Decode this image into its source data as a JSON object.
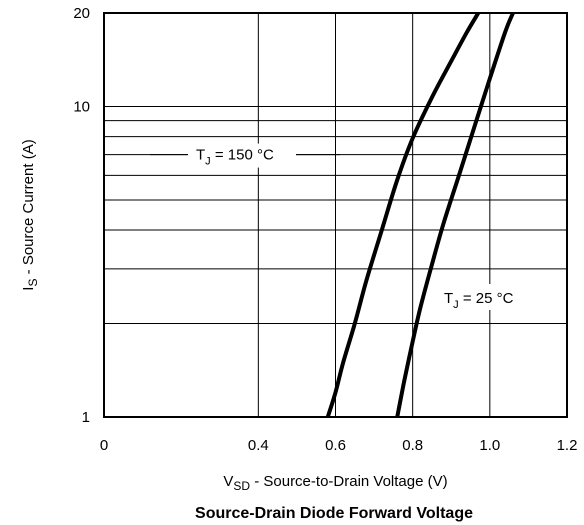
{
  "chart_data": {
    "type": "line",
    "title": "Source-Drain Diode Forward Voltage",
    "xlabel": {
      "main": "V",
      "sub": "SD",
      "rest": " - Source-to-Drain Voltage (V)"
    },
    "ylabel": {
      "main": "I",
      "sub": "S",
      "rest": " - Source Current (A)"
    },
    "xlim": [
      0,
      1.2
    ],
    "ylim": [
      1,
      20
    ],
    "yscale": "log",
    "grid": true,
    "xticks": [
      {
        "value": 0,
        "label": "0"
      },
      {
        "value": 0.4,
        "label": "0.4"
      },
      {
        "value": 0.6,
        "label": "0.6"
      },
      {
        "value": 0.8,
        "label": "0.8"
      },
      {
        "value": 1.0,
        "label": "1.0"
      },
      {
        "value": 1.2,
        "label": "1.2"
      }
    ],
    "yticks": [
      {
        "value": 1,
        "label": "1"
      },
      {
        "value": 10,
        "label": "10"
      },
      {
        "value": 20,
        "label": "20"
      }
    ],
    "ygrid_minor": [
      2,
      3,
      4,
      5,
      6,
      7,
      8,
      9
    ],
    "xgrid": [
      0.4,
      0.6,
      0.8,
      1.0
    ],
    "series": [
      {
        "name": "T_J = 150 °C",
        "annotation": {
          "main": "T",
          "sub": "J",
          "rest": " = 150 °C"
        },
        "x": [
          0.58,
          0.6,
          0.62,
          0.65,
          0.68,
          0.72,
          0.76,
          0.8,
          0.85,
          0.9,
          0.94,
          0.97
        ],
        "y": [
          1,
          1.2,
          1.5,
          2.0,
          2.75,
          4.0,
          5.8,
          7.9,
          10.7,
          14.0,
          17.3,
          20
        ]
      },
      {
        "name": "T_J = 25 °C",
        "annotation": {
          "main": "T",
          "sub": "J",
          "rest": " = 25 °C"
        },
        "x": [
          0.76,
          0.77,
          0.78,
          0.8,
          0.82,
          0.85,
          0.88,
          0.92,
          0.96,
          1.0,
          1.04,
          1.06
        ],
        "y": [
          1,
          1.16,
          1.34,
          1.75,
          2.25,
          3.1,
          4.2,
          6.0,
          8.6,
          12.3,
          17.4,
          20
        ]
      }
    ]
  }
}
